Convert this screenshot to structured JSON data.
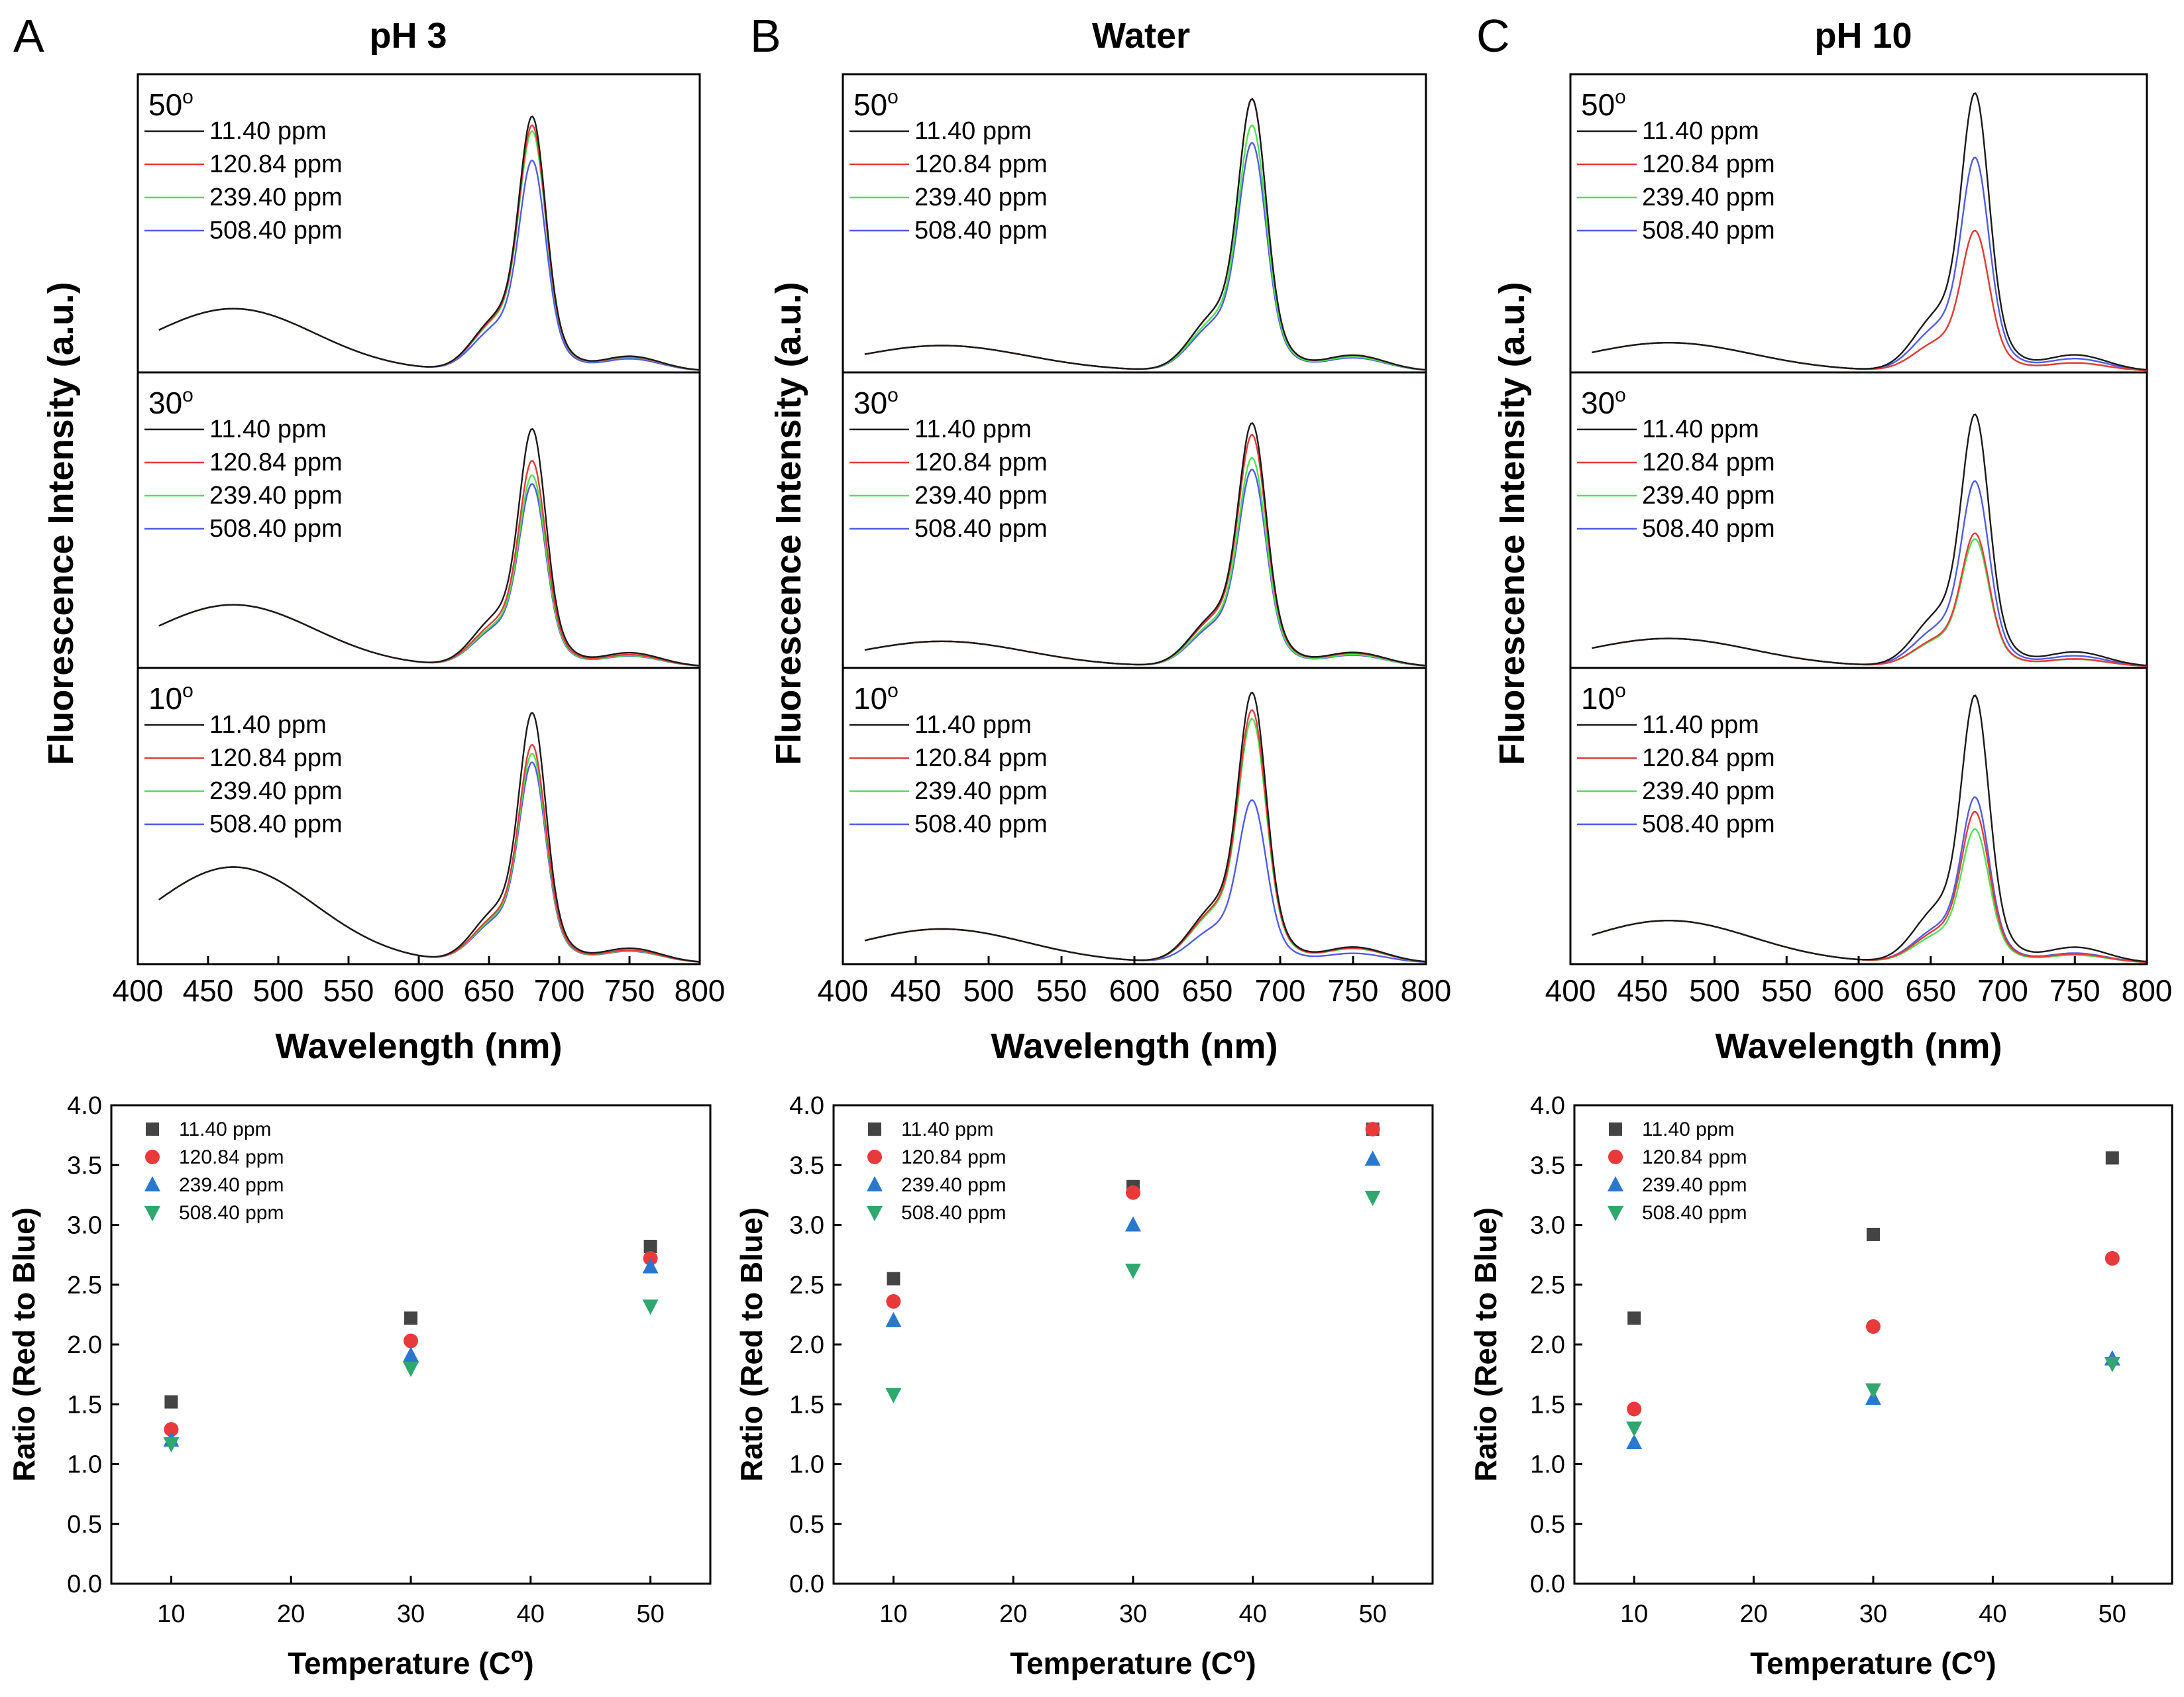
{
  "colors": {
    "11.40 ppm": "#1a1a1a",
    "120.84 ppm": "#e8393b",
    "239.40 ppm": "#4ee44e",
    "508.40 ppm": "#4f5ce8",
    "scatter_11.40 ppm": "#444444",
    "scatter_120.84 ppm": "#e8393b",
    "scatter_239.40 ppm": "#2878d0",
    "scatter_508.40 ppm": "#2ea86e"
  },
  "chart_data": [
    {
      "id": "A",
      "type": "line",
      "panel_letter": "A",
      "title": "pH 3",
      "xlabel": "Wavelength (nm)",
      "ylabel": "Fluorescence Intensity (a.u.)",
      "xlim": [
        400,
        800
      ],
      "xticks": [
        "400",
        "450",
        "500",
        "550",
        "600",
        "650",
        "700",
        "750",
        "800"
      ],
      "legend_names": [
        "11.40 ppm",
        "120.84 ppm",
        "239.40 ppm",
        "508.40 ppm"
      ],
      "subplots": [
        {
          "temp": "50",
          "deg": "o",
          "blue_peak": 0.22,
          "red_peaks": [
            0.87,
            0.84,
            0.82,
            0.72
          ]
        },
        {
          "temp": "30",
          "deg": "o",
          "blue_peak": 0.22,
          "red_peaks": [
            0.82,
            0.71,
            0.66,
            0.63
          ]
        },
        {
          "temp": "10",
          "deg": "o",
          "blue_peak": 0.34,
          "red_peaks": [
            0.86,
            0.75,
            0.72,
            0.69
          ]
        }
      ]
    },
    {
      "id": "B",
      "type": "line",
      "panel_letter": "B",
      "title": "Water",
      "xlabel": "Wavelength (nm)",
      "ylabel": "Fluorescence Intensity (a.u.)",
      "xlim": [
        400,
        800
      ],
      "xticks": [
        "400",
        "450",
        "500",
        "550",
        "600",
        "650",
        "700",
        "750",
        "800"
      ],
      "legend_names": [
        "11.40 ppm",
        "120.84 ppm",
        "239.40 ppm",
        "508.40 ppm"
      ],
      "subplots": [
        {
          "temp": "50",
          "deg": "o",
          "blue_peak": 0.09,
          "red_peaks": [
            0.93,
            0.93,
            0.84,
            0.78
          ]
        },
        {
          "temp": "30",
          "deg": "o",
          "blue_peak": 0.09,
          "red_peaks": [
            0.84,
            0.8,
            0.72,
            0.68
          ]
        },
        {
          "temp": "10",
          "deg": "o",
          "blue_peak": 0.12,
          "red_peaks": [
            0.93,
            0.87,
            0.84,
            0.56
          ]
        }
      ]
    },
    {
      "id": "C",
      "type": "line",
      "panel_letter": "C",
      "title": "pH 10",
      "xlabel": "Wavelength (nm)",
      "ylabel": "Fluorescence Intensity (a.u.)",
      "xlim": [
        400,
        800
      ],
      "xticks": [
        "400",
        "450",
        "500",
        "550",
        "600",
        "650",
        "700",
        "750",
        "800"
      ],
      "legend_names": [
        "11.40 ppm",
        "120.84 ppm",
        "239.40 ppm",
        "508.40 ppm"
      ],
      "subplots": [
        {
          "temp": "50",
          "deg": "o",
          "blue_peak": 0.1,
          "red_peaks": [
            0.95,
            0.48,
            0.48,
            0.73
          ]
        },
        {
          "temp": "30",
          "deg": "o",
          "blue_peak": 0.1,
          "red_peaks": [
            0.87,
            0.46,
            0.44,
            0.64
          ]
        },
        {
          "temp": "10",
          "deg": "o",
          "blue_peak": 0.15,
          "red_peaks": [
            0.92,
            0.52,
            0.46,
            0.57
          ]
        }
      ]
    },
    {
      "id": "A2",
      "type": "scatter",
      "xlabel": "Temperature (C",
      "xlabel_sup": "o",
      "xlabel_close": ")",
      "ylabel": "Ratio (Red to Blue)",
      "xlim": [
        5,
        55
      ],
      "ylim": [
        0.0,
        4.0
      ],
      "xticks": [
        "10",
        "20",
        "30",
        "40",
        "50"
      ],
      "yticks": [
        "0.0",
        "0.5",
        "1.0",
        "1.5",
        "2.0",
        "2.5",
        "3.0",
        "3.5",
        "4.0"
      ],
      "x": [
        10,
        30,
        50
      ],
      "series": [
        {
          "name": "11.40 ppm",
          "marker": "square",
          "values": [
            1.52,
            2.22,
            2.82
          ]
        },
        {
          "name": "120.84 ppm",
          "marker": "circle",
          "values": [
            1.29,
            2.03,
            2.72
          ]
        },
        {
          "name": "239.40 ppm",
          "marker": "triangle-up",
          "values": [
            1.2,
            1.91,
            2.65
          ]
        },
        {
          "name": "508.40 ppm",
          "marker": "triangle-down",
          "values": [
            1.17,
            1.8,
            2.32
          ]
        }
      ]
    },
    {
      "id": "B2",
      "type": "scatter",
      "xlabel": "Temperature (C",
      "xlabel_sup": "o",
      "xlabel_close": ")",
      "ylabel": "Ratio (Red to Blue)",
      "xlim": [
        5,
        55
      ],
      "ylim": [
        0.0,
        4.0
      ],
      "xticks": [
        "10",
        "20",
        "30",
        "40",
        "50"
      ],
      "yticks": [
        "0.0",
        "0.5",
        "1.0",
        "1.5",
        "2.0",
        "2.5",
        "3.0",
        "3.5",
        "4.0"
      ],
      "x": [
        10,
        30,
        50
      ],
      "series": [
        {
          "name": "11.40 ppm",
          "marker": "square",
          "values": [
            2.55,
            3.32,
            3.8
          ]
        },
        {
          "name": "120.84 ppm",
          "marker": "circle",
          "values": [
            2.36,
            3.27,
            3.8
          ]
        },
        {
          "name": "239.40 ppm",
          "marker": "triangle-up",
          "values": [
            2.2,
            3.0,
            3.55
          ]
        },
        {
          "name": "508.40 ppm",
          "marker": "triangle-down",
          "values": [
            1.58,
            2.62,
            3.23
          ]
        }
      ]
    },
    {
      "id": "C2",
      "type": "scatter",
      "xlabel": "Temperature (C",
      "xlabel_sup": "o",
      "xlabel_close": ")",
      "ylabel": "Ratio (Red to Blue)",
      "xlim": [
        5,
        55
      ],
      "ylim": [
        0.0,
        4.0
      ],
      "xticks": [
        "10",
        "20",
        "30",
        "40",
        "50"
      ],
      "yticks": [
        "0.0",
        "0.5",
        "1.0",
        "1.5",
        "2.0",
        "2.5",
        "3.0",
        "3.5",
        "4.0"
      ],
      "x": [
        10,
        30,
        50
      ],
      "series": [
        {
          "name": "11.40 ppm",
          "marker": "square",
          "values": [
            2.22,
            2.92,
            3.56
          ]
        },
        {
          "name": "120.84 ppm",
          "marker": "circle",
          "values": [
            1.46,
            2.15,
            2.72
          ]
        },
        {
          "name": "239.40 ppm",
          "marker": "triangle-up",
          "values": [
            1.18,
            1.55,
            1.88
          ]
        },
        {
          "name": "508.40 ppm",
          "marker": "triangle-down",
          "values": [
            1.3,
            1.62,
            1.84
          ]
        }
      ]
    }
  ]
}
